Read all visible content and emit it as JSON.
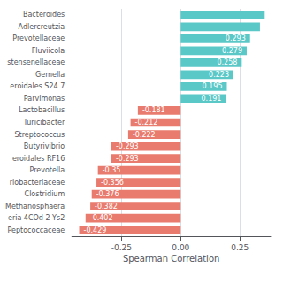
{
  "chart_data": {
    "type": "bar",
    "orientation": "horizontal",
    "xlabel": "Spearman Correlation",
    "categories": [
      "Bacteroides",
      "Adlercreutzia",
      "Prevotellaceae",
      "Fluviicola",
      "stensenellaceae",
      "Gemella",
      "eroidales S24 7",
      "Parvimonas",
      "Lactobacillus",
      "Turicibacter",
      "Streptococcus",
      "Butyrivibrio",
      "eroidales RF16",
      "Prevotella",
      "riobacteriaceae",
      "Clostridium",
      "Methanosphaera",
      "eria 4COd 2 Ys2",
      "Peptococcaceae"
    ],
    "values": [
      0.355,
      0.335,
      0.293,
      0.279,
      0.258,
      0.223,
      0.195,
      0.191,
      -0.181,
      -0.212,
      -0.222,
      -0.293,
      -0.293,
      -0.35,
      -0.356,
      -0.376,
      -0.382,
      -0.402,
      -0.429
    ],
    "value_labels": [
      null,
      null,
      "0.293",
      "0.279",
      "0.258",
      "0.223",
      "0.195",
      "0.191",
      "-0.181",
      "-0.212",
      "-0.222",
      "-0.293",
      "-0.293",
      "-0.35",
      "-0.356",
      "-0.376",
      "-0.382",
      "-0.402",
      "-0.429"
    ],
    "data_labels": true,
    "colors": [
      "#5bc8c8",
      "#5bc8c8",
      "#5bc8c8",
      "#5bc8c8",
      "#5bc8c8",
      "#5bc8c8",
      "#5bc8c8",
      "#5bc8c8",
      "#e87b6e",
      "#e87b6e",
      "#e87b6e",
      "#e87b6e",
      "#e87b6e",
      "#e87b6e",
      "#e87b6e",
      "#e87b6e",
      "#e87b6e",
      "#e87b6e",
      "#e87b6e"
    ],
    "xlim": [
      -0.46,
      0.38
    ],
    "xticks": [
      -0.25,
      {
        "value": 0,
        "label": "0.00"
      },
      0.25
    ],
    "grid": true
  }
}
